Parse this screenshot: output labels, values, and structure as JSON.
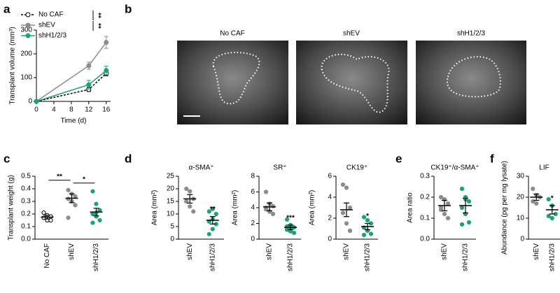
{
  "panel_labels": [
    "a",
    "b",
    "c",
    "d",
    "e",
    "f"
  ],
  "images": {
    "titles": [
      "No CAF",
      "shEV",
      "shH1/2/3"
    ]
  },
  "chart_data": [
    {
      "type": "line",
      "xlabel": "Time (d)",
      "ylabel": "Transplant volume (mm³)",
      "x": [
        0,
        12,
        16
      ],
      "xlim": [
        0,
        17
      ],
      "xticks": [
        0,
        4,
        8,
        12,
        16
      ],
      "ylim": [
        0,
        300
      ],
      "yticks": [
        0,
        100,
        200,
        300
      ],
      "legend": "upper left",
      "annotations": [
        "**",
        "**"
      ],
      "series": [
        {
          "name": "No CAF",
          "color": "#000000",
          "dashed": true,
          "marker": "open",
          "values": [
            0,
            50,
            118
          ],
          "errors": [
            0,
            8,
            10
          ]
        },
        {
          "name": "shEV",
          "color": "#8c8c8c",
          "dashed": false,
          "marker": "filled",
          "values": [
            0,
            150,
            248
          ],
          "errors": [
            0,
            15,
            25
          ]
        },
        {
          "name": "shH1/2/3",
          "color": "#1aa37a",
          "dashed": false,
          "marker": "filled",
          "values": [
            0,
            70,
            130
          ],
          "errors": [
            0,
            18,
            18
          ]
        }
      ]
    },
    {
      "type": "strip",
      "ylabel": "Transplant weight (g)",
      "categories": [
        "No CAF",
        "shEV",
        "shH1/2/3"
      ],
      "ylim": [
        0,
        0.5
      ],
      "yticks": [
        {
          "value": 0,
          "label": "0.0"
        },
        0.1,
        0.2,
        0.3,
        0.4,
        0.5
      ],
      "colors": [
        "#000000",
        "#8c8c8c",
        "#1aa37a"
      ],
      "open_markers": [
        true,
        false,
        false
      ],
      "points": [
        [
          0.21,
          0.19,
          0.18,
          0.17,
          0.15,
          0.15
        ],
        [
          0.39,
          0.36,
          0.34,
          0.32,
          0.3,
          0.27,
          0.17
        ],
        [
          0.38,
          0.28,
          0.23,
          0.2,
          0.18,
          0.15,
          0.13,
          0.21
        ]
      ],
      "means": [
        0.175,
        0.325,
        0.215
      ],
      "errors": [
        0.015,
        0.035,
        0.03
      ],
      "annotations": [
        "**",
        "*"
      ],
      "annotation_style": "bracket"
    },
    {
      "type": "strip",
      "title": "α-SMA⁺",
      "ylabel": "Area (mm²)",
      "categories": [
        "shEV",
        "shH1/2/3"
      ],
      "ylim": [
        0,
        25
      ],
      "yticks": [
        0,
        5,
        10,
        15,
        20,
        25
      ],
      "colors": [
        "#8c8c8c",
        "#1aa37a"
      ],
      "open_markers": [
        false,
        false
      ],
      "points": [
        [
          20,
          19,
          16,
          15,
          13,
          11,
          15
        ],
        [
          2,
          4,
          6,
          7,
          8,
          10,
          11,
          12
        ]
      ],
      "means": [
        16,
        7.5
      ],
      "errors": [
        1.7,
        1.5
      ],
      "annotations": [
        "**"
      ],
      "annotation_style": "above"
    },
    {
      "type": "strip",
      "title": "SR⁺",
      "ylabel": "Area (mm²)",
      "categories": [
        "shEV",
        "shH1/2/3"
      ],
      "ylim": [
        0,
        8
      ],
      "yticks": [
        0,
        2,
        4,
        6,
        8
      ],
      "colors": [
        "#8c8c8c",
        "#1aa37a"
      ],
      "open_markers": [
        false,
        false
      ],
      "points": [
        [
          6,
          4.5,
          4.2,
          3.8,
          3.5,
          3.2,
          4
        ],
        [
          2.5,
          1.8,
          1.5,
          1.2,
          1,
          0.8,
          1.6,
          1.3
        ]
      ],
      "means": [
        4.1,
        1.5
      ],
      "errors": [
        0.5,
        0.3
      ],
      "annotations": [
        "***"
      ],
      "annotation_style": "above"
    },
    {
      "type": "strip",
      "title": "CK19⁺",
      "ylabel": "Area (mm²)",
      "categories": [
        "shEV",
        "shH1/2/3"
      ],
      "ylim": [
        0,
        6
      ],
      "yticks": [
        0,
        2,
        4,
        6
      ],
      "colors": [
        "#8c8c8c",
        "#1aa37a"
      ],
      "open_markers": [
        false,
        false
      ],
      "points": [
        [
          5.2,
          4.9,
          3,
          2.5,
          1.5,
          0.8
        ],
        [
          2.1,
          1.8,
          1.5,
          1.1,
          0.8,
          0.5,
          0.4
        ]
      ],
      "means": [
        2.8,
        1.2
      ],
      "errors": [
        0.65,
        0.3
      ],
      "annotations": [
        "*"
      ],
      "annotation_style": "above"
    },
    {
      "type": "strip",
      "title": "CK19⁺/α-SMA⁺",
      "ylabel": "Area ratio",
      "categories": [
        "shEV",
        "shH1/2/3"
      ],
      "ylim": [
        0,
        0.3
      ],
      "yticks": [
        {
          "value": 0,
          "label": "0.0"
        },
        0.1,
        0.2,
        0.3
      ],
      "colors": [
        "#8c8c8c",
        "#1aa37a"
      ],
      "open_markers": [
        false,
        false
      ],
      "points": [
        [
          0.2,
          0.19,
          0.17,
          0.15,
          0.12,
          0.1,
          0.14
        ],
        [
          0.24,
          0.19,
          0.18,
          0.15,
          0.12,
          0.08,
          0.07,
          0.2
        ]
      ],
      "means": [
        0.16,
        0.16
      ],
      "errors": [
        0.025,
        0.035
      ]
    },
    {
      "type": "strip",
      "title": "LIF",
      "ylabel": "Abundance (pg per mg lysate)",
      "categories": [
        "shEV",
        "shH1/2/3"
      ],
      "ylim": [
        0,
        30
      ],
      "yticks": [
        0,
        10,
        20,
        30
      ],
      "colors": [
        "#8c8c8c",
        "#1aa37a"
      ],
      "open_markers": [
        false,
        false
      ],
      "points": [
        [
          24,
          21,
          20,
          18,
          17
        ],
        [
          19,
          16,
          12,
          11,
          10
        ]
      ],
      "means": [
        20,
        14
      ],
      "errors": [
        1.5,
        2
      ],
      "annotations": [
        "*"
      ],
      "annotation_style": "above"
    }
  ]
}
